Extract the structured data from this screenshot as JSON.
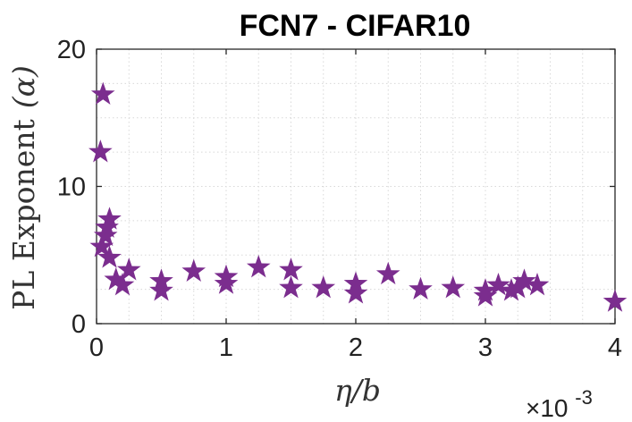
{
  "chart_data": {
    "type": "scatter",
    "title": "FCN7 - CIFAR10",
    "xlabel": "η/b",
    "ylabel": "PL Exponent (α)",
    "ylabel_main": "PL Exponent",
    "ylabel_sym": "(α)",
    "x_exponent_label": "×10",
    "x_exponent_power": "-3",
    "xlim": [
      0,
      4
    ],
    "ylim": [
      0,
      20
    ],
    "xticks": [
      "0",
      "1",
      "2",
      "3",
      "4"
    ],
    "yticks": [
      "0",
      "10",
      "20"
    ],
    "grid": true,
    "marker": "star",
    "marker_color": "#7b2d8e",
    "points": [
      {
        "x": 0.03,
        "y": 12.5
      },
      {
        "x": 0.05,
        "y": 16.7
      },
      {
        "x": 0.04,
        "y": 5.6
      },
      {
        "x": 0.07,
        "y": 6.4
      },
      {
        "x": 0.08,
        "y": 7.0
      },
      {
        "x": 0.1,
        "y": 7.6
      },
      {
        "x": 0.1,
        "y": 4.8
      },
      {
        "x": 0.15,
        "y": 3.2
      },
      {
        "x": 0.2,
        "y": 2.8
      },
      {
        "x": 0.25,
        "y": 3.9
      },
      {
        "x": 0.5,
        "y": 3.1
      },
      {
        "x": 0.5,
        "y": 2.4
      },
      {
        "x": 0.75,
        "y": 3.8
      },
      {
        "x": 1.0,
        "y": 3.4
      },
      {
        "x": 1.0,
        "y": 2.9
      },
      {
        "x": 1.25,
        "y": 4.1
      },
      {
        "x": 1.5,
        "y": 3.9
      },
      {
        "x": 1.5,
        "y": 2.6
      },
      {
        "x": 1.75,
        "y": 2.6
      },
      {
        "x": 2.0,
        "y": 2.9
      },
      {
        "x": 2.0,
        "y": 2.2
      },
      {
        "x": 2.25,
        "y": 3.6
      },
      {
        "x": 2.5,
        "y": 2.5
      },
      {
        "x": 2.75,
        "y": 2.6
      },
      {
        "x": 3.0,
        "y": 2.4
      },
      {
        "x": 3.0,
        "y": 2.0
      },
      {
        "x": 3.1,
        "y": 2.8
      },
      {
        "x": 3.2,
        "y": 2.4
      },
      {
        "x": 3.25,
        "y": 2.6
      },
      {
        "x": 3.3,
        "y": 3.1
      },
      {
        "x": 3.4,
        "y": 2.8
      },
      {
        "x": 4.0,
        "y": 1.6
      }
    ]
  }
}
